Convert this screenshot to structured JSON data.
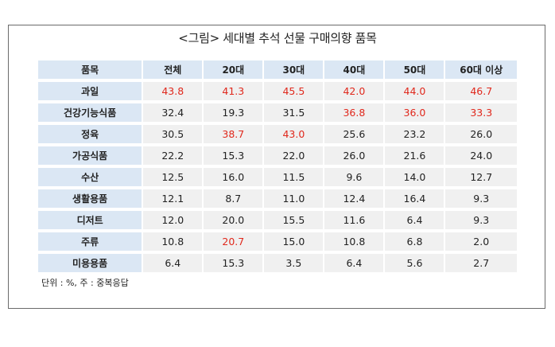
{
  "title": "<그림> 세대별 추석 선물 구매의향 품목",
  "table": {
    "header": [
      "품목",
      "전체",
      "20대",
      "30대",
      "40대",
      "50대",
      "60대 이상"
    ],
    "rows": [
      {
        "label": "과일",
        "values": [
          "43.8",
          "41.3",
          "45.5",
          "42.0",
          "44.0",
          "46.7"
        ],
        "highlight": [
          true,
          true,
          true,
          true,
          true,
          true
        ]
      },
      {
        "label": "건강기능식품",
        "values": [
          "32.4",
          "19.3",
          "31.5",
          "36.8",
          "36.0",
          "33.3"
        ],
        "highlight": [
          false,
          false,
          false,
          true,
          true,
          true
        ]
      },
      {
        "label": "정육",
        "values": [
          "30.5",
          "38.7",
          "43.0",
          "25.6",
          "23.2",
          "26.0"
        ],
        "highlight": [
          false,
          true,
          true,
          false,
          false,
          false
        ]
      },
      {
        "label": "가공식품",
        "values": [
          "22.2",
          "15.3",
          "22.0",
          "26.0",
          "21.6",
          "24.0"
        ],
        "highlight": [
          false,
          false,
          false,
          false,
          false,
          false
        ]
      },
      {
        "label": "수산",
        "values": [
          "12.5",
          "16.0",
          "11.5",
          "9.6",
          "14.0",
          "12.7"
        ],
        "highlight": [
          false,
          false,
          false,
          false,
          false,
          false
        ]
      },
      {
        "label": "생활용품",
        "values": [
          "12.1",
          "8.7",
          "11.0",
          "12.4",
          "16.4",
          "9.3"
        ],
        "highlight": [
          false,
          false,
          false,
          false,
          false,
          false
        ]
      },
      {
        "label": "디저트",
        "values": [
          "12.0",
          "20.0",
          "15.5",
          "11.6",
          "6.4",
          "9.3"
        ],
        "highlight": [
          false,
          false,
          false,
          false,
          false,
          false
        ]
      },
      {
        "label": "주류",
        "values": [
          "10.8",
          "20.7",
          "15.0",
          "10.8",
          "6.8",
          "2.0"
        ],
        "highlight": [
          false,
          true,
          false,
          false,
          false,
          false
        ]
      },
      {
        "label": "미용용품",
        "values": [
          "6.4",
          "15.3",
          "3.5",
          "6.4",
          "5.6",
          "2.7"
        ],
        "highlight": [
          false,
          false,
          false,
          false,
          false,
          false
        ]
      }
    ]
  },
  "note": "단위 : %, 주 : 중복응답",
  "colors": {
    "header_bg": "#dbe7f4",
    "cell_bg": "#f0f0f0",
    "highlight": "#e0281c"
  }
}
